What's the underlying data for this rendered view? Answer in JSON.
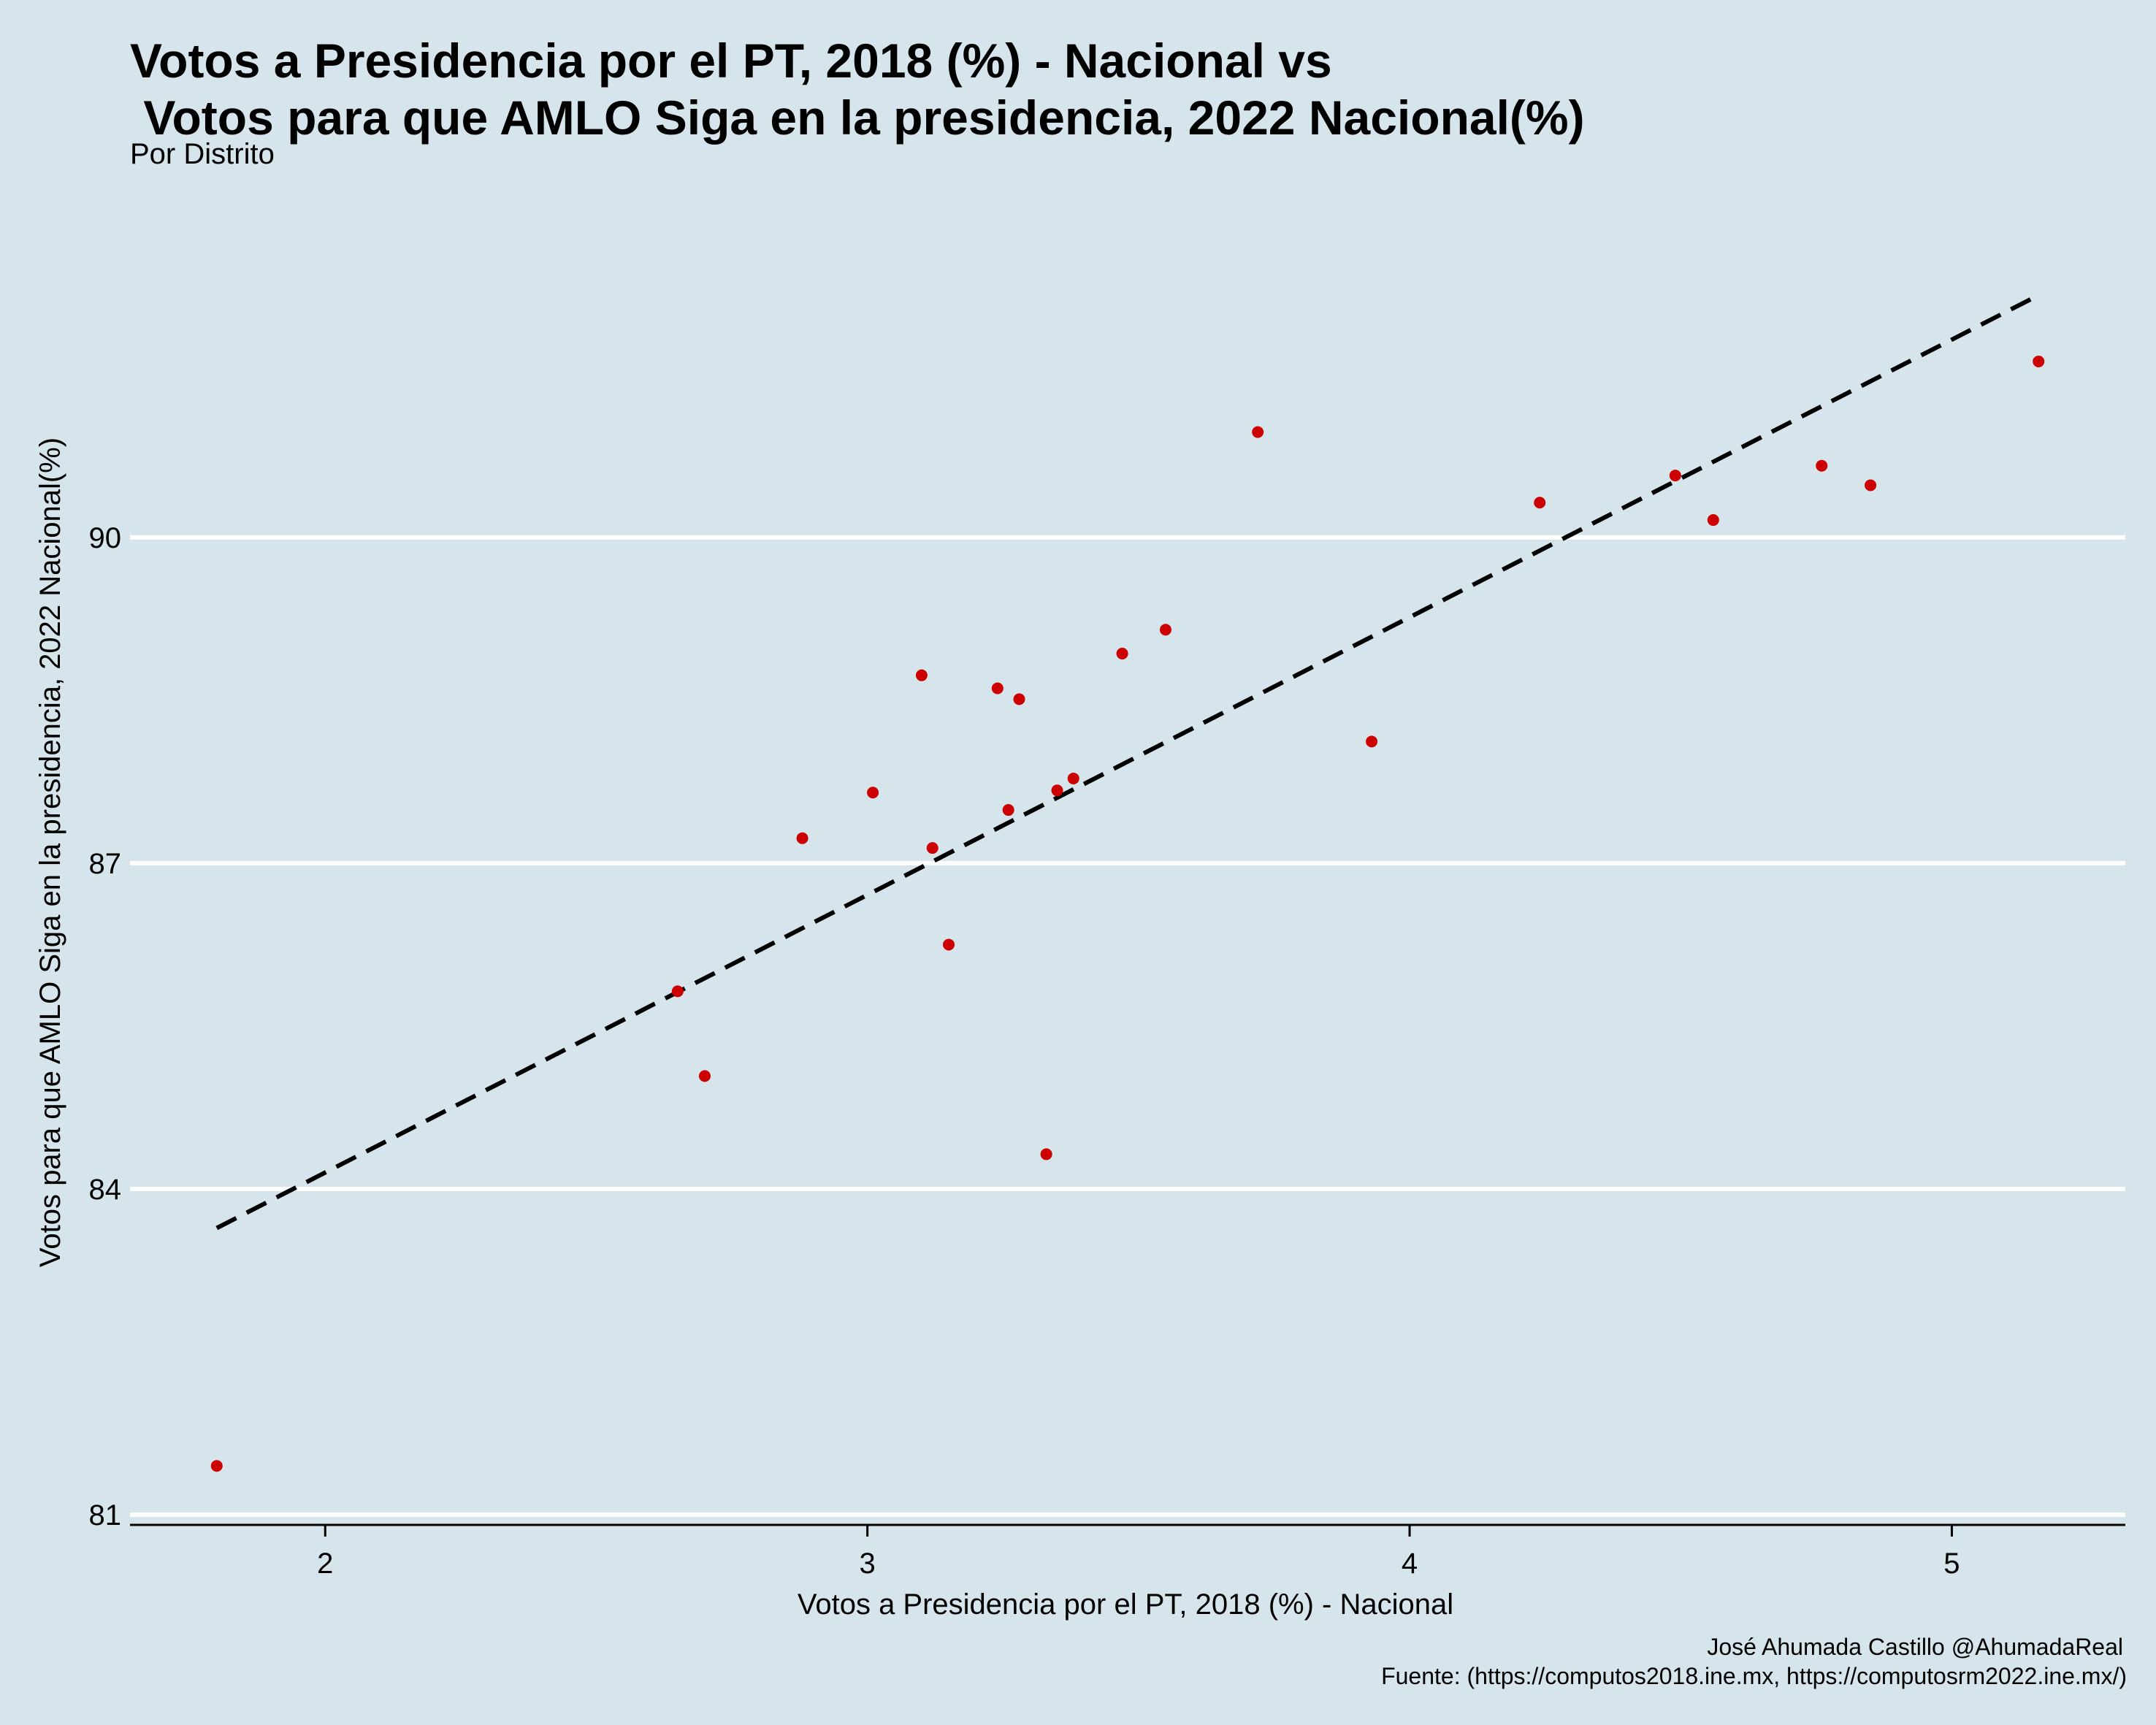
{
  "chart_data": {
    "type": "scatter",
    "title_line1": "Votos a Presidencia por el PT, 2018 (%) - Nacional vs",
    "title_line2": " Votos para que AMLO Siga en la presidencia, 2022 Nacional(%)",
    "subtitle": "Por Distrito",
    "xlabel": "Votos a Presidencia por el PT, 2018 (%) - Nacional",
    "ylabel": "Votos para que AMLO Siga en la presidencia, 2022 Nacional(%)",
    "caption_line1": "José Ahumada Castillo @AhumadaReal",
    "caption_line2": "Fuente: (https://computos2018.ine.mx, https://computosrm2022.ine.mx/)",
    "xlim": [
      1.64,
      5.32
    ],
    "ylim": [
      80.92,
      93.2
    ],
    "xticks": [
      2,
      3,
      4,
      5
    ],
    "yticks": [
      81,
      84,
      87,
      90
    ],
    "xtick_labels": [
      "2",
      "3",
      "4",
      "5"
    ],
    "ytick_labels": [
      "81",
      "84",
      "87",
      "90"
    ],
    "grid": "horizontal major lines",
    "point_color": "#cc0000",
    "line_color": "#000000",
    "points": [
      {
        "x": 1.8,
        "y": 81.45
      },
      {
        "x": 2.65,
        "y": 85.82
      },
      {
        "x": 2.7,
        "y": 85.04
      },
      {
        "x": 2.88,
        "y": 87.23
      },
      {
        "x": 3.01,
        "y": 87.65
      },
      {
        "x": 3.1,
        "y": 88.73
      },
      {
        "x": 3.12,
        "y": 87.14
      },
      {
        "x": 3.15,
        "y": 86.25
      },
      {
        "x": 3.24,
        "y": 88.61
      },
      {
        "x": 3.26,
        "y": 87.49
      },
      {
        "x": 3.28,
        "y": 88.51
      },
      {
        "x": 3.33,
        "y": 84.32
      },
      {
        "x": 3.35,
        "y": 87.67
      },
      {
        "x": 3.38,
        "y": 87.78
      },
      {
        "x": 3.47,
        "y": 88.93
      },
      {
        "x": 3.55,
        "y": 89.15
      },
      {
        "x": 3.72,
        "y": 90.97
      },
      {
        "x": 3.93,
        "y": 88.12
      },
      {
        "x": 4.24,
        "y": 90.32
      },
      {
        "x": 4.49,
        "y": 90.57
      },
      {
        "x": 4.56,
        "y": 90.16
      },
      {
        "x": 4.76,
        "y": 90.66
      },
      {
        "x": 4.85,
        "y": 90.48
      },
      {
        "x": 5.16,
        "y": 91.62
      }
    ],
    "trend_line": {
      "x": [
        1.8,
        5.16
      ],
      "y": [
        83.64,
        92.23
      ]
    }
  }
}
